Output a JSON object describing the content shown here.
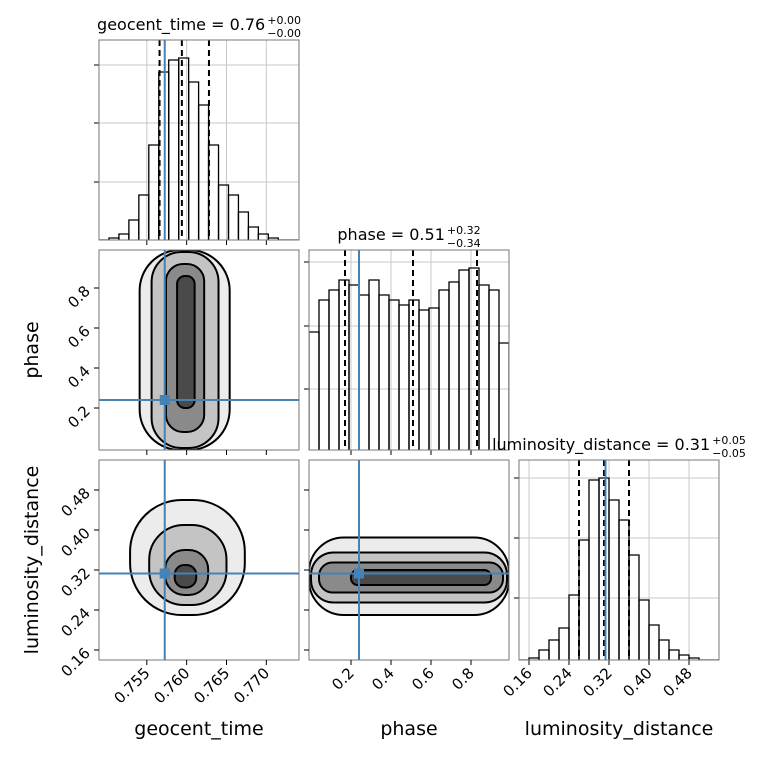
{
  "chart_data": {
    "type": "corner",
    "parameters": [
      {
        "name": "geocent_time",
        "title": "geocent_time = 0.76",
        "title_sup": "+0.00",
        "title_sub": "−0.00",
        "xlim": [
          0.749,
          0.7741
        ],
        "xticks": [
          0.755,
          {
            "value": 0.76,
            "label": "0.760"
          },
          0.765,
          {
            "value": 0.77,
            "label": "0.770"
          }
        ],
        "bins": [
          0.749,
          0.75025,
          0.7515,
          0.75275,
          0.754,
          0.75525,
          0.7565,
          0.75775,
          0.759,
          0.76025,
          0.7615,
          0.76275,
          0.764,
          0.76525,
          0.7665,
          0.76775,
          0.769,
          0.77025,
          0.7715,
          0.77275,
          0.774
        ],
        "counts": [
          0,
          2,
          6,
          20,
          45,
          95,
          168,
          180,
          182,
          158,
          135,
          95,
          55,
          45,
          28,
          13,
          6,
          2,
          0,
          0
        ],
        "ylim": [
          0,
          200
        ],
        "yticks": [
          58,
          117,
          175
        ],
        "quantiles": [
          0.7566,
          0.7594,
          0.7628
        ],
        "truth": 0.75725
      },
      {
        "name": "phase",
        "title": "phase = 0.51",
        "title_sup": "+0.32",
        "title_sub": "−0.34",
        "xlim": [
          -0.01,
          0.99
        ],
        "xticks": [
          0.2,
          0.4,
          0.6,
          0.8
        ],
        "bins": [
          -0.01,
          0.04,
          0.09,
          0.14,
          0.19,
          0.24,
          0.29,
          0.34,
          0.39,
          0.44,
          0.49,
          0.54,
          0.59,
          0.64,
          0.69,
          0.74,
          0.79,
          0.84,
          0.89,
          0.94,
          0.99
        ],
        "counts": [
          118,
          150,
          160,
          170,
          165,
          155,
          170,
          155,
          150,
          145,
          150,
          140,
          142,
          160,
          168,
          180,
          182,
          165,
          160,
          107
        ],
        "ylim": [
          0,
          200
        ],
        "yticks": [
          61,
          124,
          188
        ],
        "quantiles": [
          0.17,
          0.51,
          0.83
        ],
        "truth": 0.24
      },
      {
        "name": "luminosity_distance",
        "title": "luminosity_distance = 0.31",
        "title_sup": "+0.05",
        "title_sub": "−0.05",
        "xlim": [
          0.14,
          0.54
        ],
        "xticks": [
          0.16,
          0.24,
          0.32,
          {
            "value": 0.4,
            "label": "0.40"
          },
          0.48
        ],
        "bins": [
          0.14,
          0.16,
          0.18,
          0.2,
          0.22,
          0.24,
          0.26,
          0.28,
          0.3,
          0.32,
          0.34,
          0.36,
          0.38,
          0.4,
          0.42,
          0.44,
          0.46,
          0.48,
          0.5,
          0.52,
          0.54
        ],
        "counts": [
          0,
          2,
          10,
          20,
          32,
          65,
          120,
          180,
          182,
          160,
          140,
          105,
          60,
          35,
          20,
          10,
          5,
          2,
          0,
          0
        ],
        "ylim": [
          0,
          200
        ],
        "yticks": [
          62,
          122,
          182
        ],
        "quantiles": [
          0.26,
          0.31,
          0.36
        ],
        "truth": 0.313
      }
    ],
    "pairs": [
      {
        "contours": [
          {
            "x": [
              0.7541,
              0.7654
            ],
            "y": [
              -0.01,
              0.99
            ]
          },
          {
            "x": [
              0.7556,
              0.764
            ],
            "y": [
              0.0,
              0.98
            ]
          },
          {
            "x": [
              0.7574,
              0.7622
            ],
            "y": [
              0.08,
              0.92
            ]
          },
          {
            "x": [
              0.7588,
              0.761
            ],
            "y": [
              0.2,
              0.86
            ]
          }
        ]
      },
      {
        "contours": [
          {
            "x": [
              0.7529,
              0.7673
            ],
            "y": [
              0.23,
              0.46
            ]
          },
          {
            "x": [
              0.7553,
              0.765
            ],
            "y": [
              0.25,
              0.41
            ]
          },
          {
            "x": [
              0.7573,
              0.7627
            ],
            "y": [
              0.27,
              0.36
            ]
          },
          {
            "x": [
              0.7585,
              0.7612
            ],
            "y": [
              0.285,
              0.33
            ]
          }
        ]
      },
      {
        "contours": [
          {
            "x": [
              -0.01,
              0.99
            ],
            "y": [
              0.23,
              0.385
            ]
          },
          {
            "x": [
              0.0,
              0.98
            ],
            "y": [
              0.255,
              0.355
            ]
          },
          {
            "x": [
              0.04,
              0.96
            ],
            "y": [
              0.275,
              0.335
            ]
          },
          {
            "x": [
              0.2,
              0.9
            ],
            "y": [
              0.29,
              0.32
            ]
          }
        ]
      }
    ]
  }
}
